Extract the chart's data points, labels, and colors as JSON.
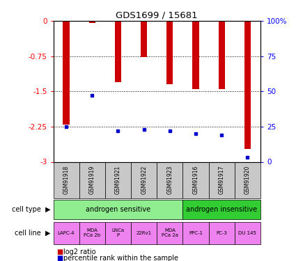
{
  "title": "GDS1699 / 15681",
  "samples": [
    "GSM91918",
    "GSM91919",
    "GSM91921",
    "GSM91922",
    "GSM91923",
    "GSM91916",
    "GSM91917",
    "GSM91920"
  ],
  "log2_ratios": [
    -2.2,
    -0.05,
    -1.3,
    -0.77,
    -1.35,
    -1.45,
    -1.45,
    -2.72
  ],
  "percentile_ranks": [
    25,
    47,
    22,
    23,
    22,
    20,
    19,
    3
  ],
  "ylim_left": [
    -3,
    0
  ],
  "left_ticks": [
    0,
    -0.75,
    -1.5,
    -2.25,
    -3
  ],
  "right_ticks": [
    100,
    75,
    50,
    25,
    0
  ],
  "cell_types": [
    {
      "label": "androgen sensitive",
      "span": [
        0,
        5
      ],
      "color": "#90EE90"
    },
    {
      "label": "androgen insensitive",
      "span": [
        5,
        8
      ],
      "color": "#32CD32"
    }
  ],
  "cell_lines": [
    "LAPC-4",
    "MDA\nPCa 2b",
    "LNCa\nP",
    "22Rv1",
    "MDA\nPCa 2a",
    "PPC-1",
    "PC-3",
    "DU 145"
  ],
  "cell_line_color": "#EE82EE",
  "gsm_bg_color": "#C8C8C8",
  "bar_color": "#CC0000",
  "percentile_color": "#0000CC",
  "legend_bar_label": "log2 ratio",
  "legend_pct_label": "percentile rank within the sample",
  "bar_width": 0.25,
  "n_samples": 8
}
